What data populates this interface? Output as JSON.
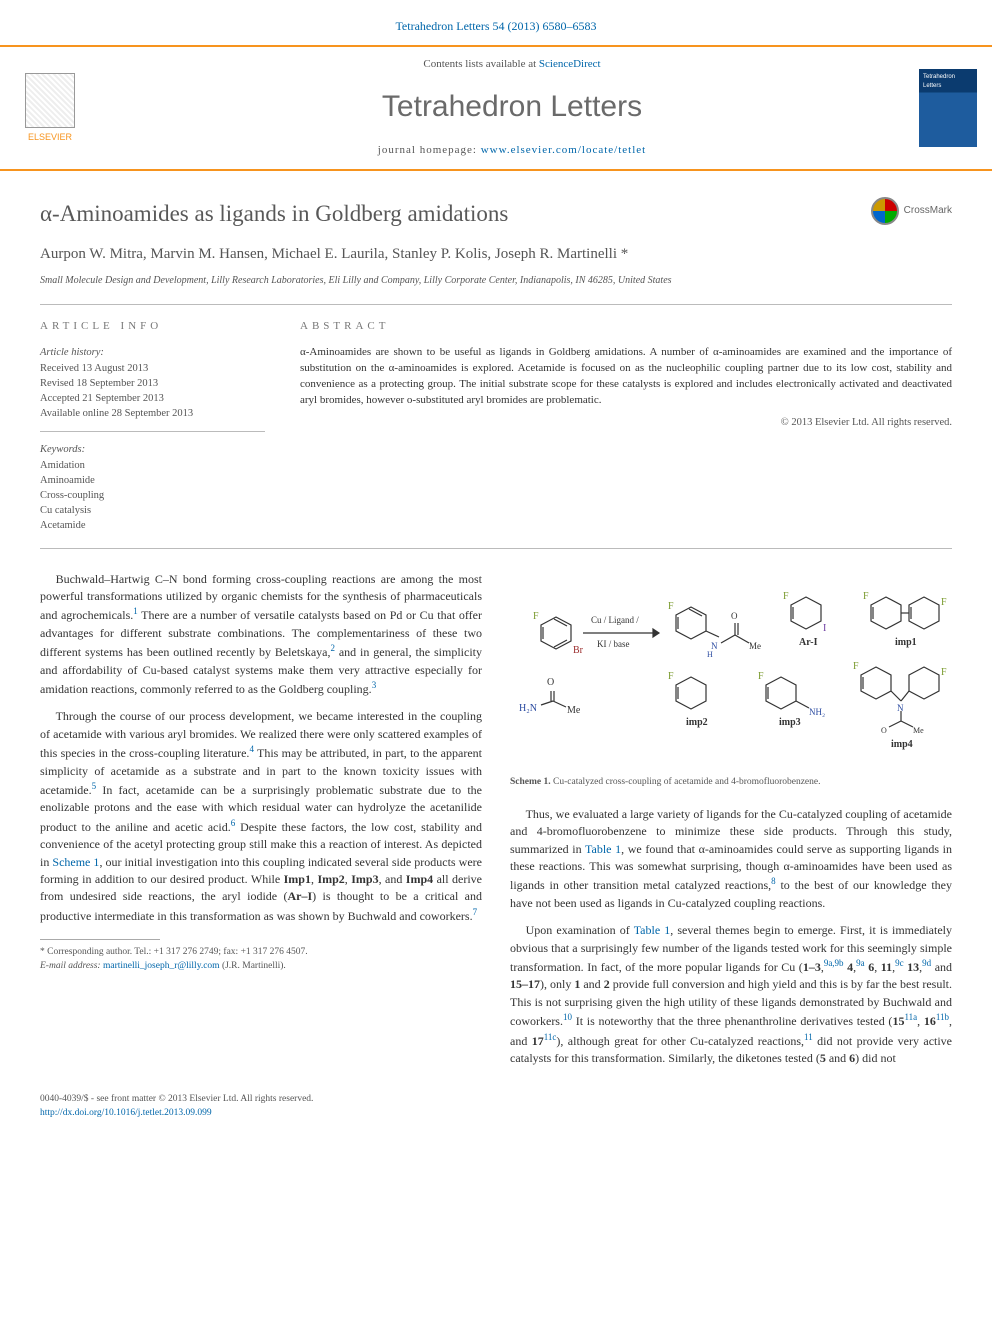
{
  "citation": "Tetrahedron Letters 54 (2013) 6580–6583",
  "header": {
    "contents_prefix": "Contents lists available at ",
    "contents_link": "ScienceDirect",
    "journal": "Tetrahedron Letters",
    "homepage_prefix": "journal homepage: ",
    "homepage_link": "www.elsevier.com/locate/tetlet",
    "publisher": "ELSEVIER",
    "cover_label": "Tetrahedron Letters"
  },
  "title": "α-Aminoamides as ligands in Goldberg amidations",
  "crossmark": "CrossMark",
  "authors": "Aurpon W. Mitra, Marvin M. Hansen, Michael E. Laurila, Stanley P. Kolis, Joseph R. Martinelli *",
  "affiliation": "Small Molecule Design and Development, Lilly Research Laboratories, Eli Lilly and Company, Lilly Corporate Center, Indianapolis, IN 46285, United States",
  "meta": {
    "info_head": "ARTICLE INFO",
    "abs_head": "ABSTRACT",
    "history_label": "Article history:",
    "history": [
      "Received 13 August 2013",
      "Revised 18 September 2013",
      "Accepted 21 September 2013",
      "Available online 28 September 2013"
    ],
    "keywords_label": "Keywords:",
    "keywords": [
      "Amidation",
      "Aminoamide",
      "Cross-coupling",
      "Cu catalysis",
      "Acetamide"
    ],
    "abstract": "α-Aminoamides are shown to be useful as ligands in Goldberg amidations. A number of α-aminoamides are examined and the importance of substitution on the α-aminoamides is explored. Acetamide is focused on as the nucleophilic coupling partner due to its low cost, stability and convenience as a protecting group. The initial substrate scope for these catalysts is explored and includes electronically activated and deactivated aryl bromides, however o-substituted aryl bromides are problematic.",
    "copyright": "© 2013 Elsevier Ltd. All rights reserved."
  },
  "body": {
    "left": {
      "p1_html": "Buchwald–Hartwig C–N bond forming cross-coupling reactions are among the most powerful transformations utilized by organic chemists for the synthesis of pharmaceuticals and agrochemicals.<sup><a href='#'>1</a></sup> There are a number of versatile catalysts based on Pd or Cu that offer advantages for different substrate combinations. The complementariness of these two different systems has been outlined recently by Beletskaya,<sup><a href='#'>2</a></sup> and in general, the simplicity and affordability of Cu-based catalyst systems make them very attractive especially for amidation reactions, commonly referred to as the Goldberg coupling.<sup><a href='#'>3</a></sup>",
      "p2_html": "Through the course of our process development, we became interested in the coupling of acetamide with various aryl bromides. We realized there were only scattered examples of this species in the cross-coupling literature.<sup><a href='#'>4</a></sup> This may be attributed, in part, to the apparent simplicity of acetamide as a substrate and in part to the known toxicity issues with acetamide.<sup><a href='#'>5</a></sup> In fact, acetamide can be a surprisingly problematic substrate due to the enolizable protons and the ease with which residual water can hydrolyze the acetanilide product to the aniline and acetic acid.<sup><a href='#'>6</a></sup> Despite these factors, the low cost, stability and convenience of the acetyl protecting group still make this a reaction of interest. As depicted in <a href='#'>Scheme 1</a>, our initial investigation into this coupling indicated several side products were forming in addition to our desired product. While <b>Imp1</b>, <b>Imp2</b>, <b>Imp3</b>, and <b>Imp4</b> all derive from undesired side reactions, the aryl iodide (<b>Ar–I</b>) is thought to be a critical and productive intermediate in this transformation as was shown by Buchwald and coworkers.<sup><a href='#'>7</a></sup>"
    },
    "right": {
      "p1_html": "Thus, we evaluated a large variety of ligands for the Cu-catalyzed coupling of acetamide and 4-bromofluorobenzene to minimize these side products. Through this study, summarized in <a href='#'>Table 1</a>, we found that α-aminoamides could serve as supporting ligands in these reactions. This was somewhat surprising, though α-aminoamides have been used as ligands in other transition metal catalyzed reactions,<sup><a href='#'>8</a></sup> to the best of our knowledge they have not been used as ligands in Cu-catalyzed coupling reactions.",
      "p2_html": "Upon examination of <a href='#'>Table 1</a>, several themes begin to emerge. First, it is immediately obvious that a surprisingly few number of the ligands tested work for this seemingly simple transformation. In fact, of the more popular ligands for Cu (<b>1–3</b>,<sup><a href='#'>9a,9b</a></sup> <b>4</b>,<sup><a href='#'>9a</a></sup> <b>6</b>, <b>11</b>,<sup><a href='#'>9c</a></sup> <b>13</b>,<sup><a href='#'>9d</a></sup> and <b>15–17</b>), only <b>1</b> and <b>2</b> provide full conversion and high yield and this is by far the best result. This is not surprising given the high utility of these ligands demonstrated by Buchwald and coworkers.<sup><a href='#'>10</a></sup> It is noteworthy that the three phenanthroline derivatives tested (<b>15</b><sup><a href='#'>11a</a></sup>, <b>16</b><sup><a href='#'>11b</a></sup>, and <b>17</b><sup><a href='#'>11c</a></sup>), although great for other Cu-catalyzed reactions,<sup><a href='#'>11</a></sup> did not provide very active catalysts for this transformation. Similarly, the diketones tested (<b>5</b> and <b>6</b>) did not"
    }
  },
  "scheme": {
    "labels": {
      "reagent_top": "Cu / Ligand /",
      "reagent_bot": "KI / base",
      "acetamide_top": "O",
      "acetamide_left": "H₂N",
      "acetamide_right": "Me",
      "arI": "Ar-I",
      "imp1": "imp1",
      "imp2": "imp2",
      "imp3": "imp3",
      "imp4": "imp4",
      "product_O": "O",
      "product_Me": "Me",
      "product_HN": "H N"
    },
    "caption_b": "Scheme 1.",
    "caption": " Cu-catalyzed cross-coupling of acetamide and 4-bromofluorobenzene.",
    "colors": {
      "stroke": "#333333",
      "fluorine": "#7a9a2e",
      "bromine": "#9b2d2d",
      "nitrogen": "#2a4aa0"
    }
  },
  "footnote": {
    "corr": "* Corresponding author. Tel.: +1 317 276 2749; fax: +1 317 276 4507.",
    "email_label": "E-mail address:",
    "email": "martinelli_joseph_r@lilly.com",
    "email_name": "(J.R. Martinelli)."
  },
  "footer": {
    "line1": "0040-4039/$ - see front matter © 2013 Elsevier Ltd. All rights reserved.",
    "doi": "http://dx.doi.org/10.1016/j.tetlet.2013.09.099"
  }
}
